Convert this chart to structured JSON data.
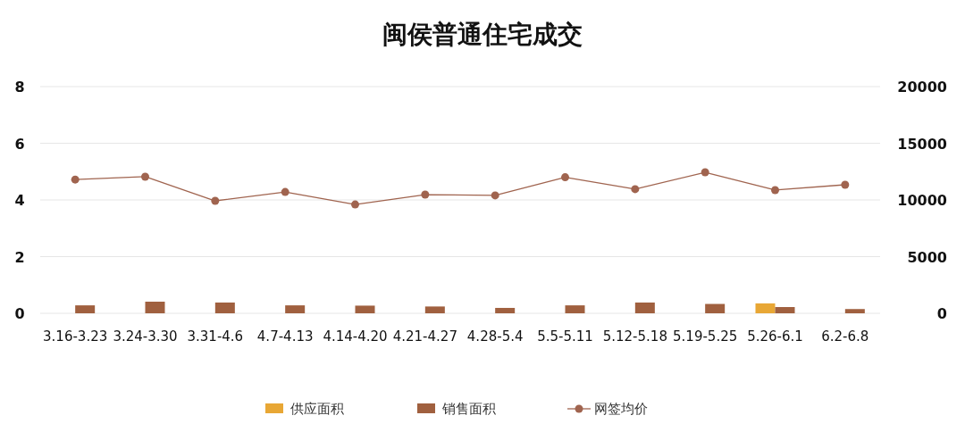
{
  "chart_data": {
    "type": "bar",
    "title": "闽侯普通住宅成交",
    "categories": [
      "3.16-3.23",
      "3.24-3.30",
      "3.31-4.6",
      "4.7-4.13",
      "4.14-4.20",
      "4.21-4.27",
      "4.28-5.4",
      "5.5-5.11",
      "5.12-5.18",
      "5.19-5.25",
      "5.26-6.1",
      "6.2-6.8"
    ],
    "series": [
      {
        "name": "供应面积",
        "color": "#e8a735",
        "values": [
          0,
          0,
          0,
          0,
          0,
          0,
          0,
          0,
          0,
          0,
          0.35,
          0
        ]
      },
      {
        "name": "销售面积",
        "color": "#a0603f",
        "values": [
          0.28,
          0.41,
          0.38,
          0.28,
          0.27,
          0.24,
          0.19,
          0.28,
          0.38,
          0.33,
          0.22,
          0.15
        ]
      },
      {
        "name": "网签均价",
        "type": "line",
        "axis": "y2",
        "color": "#a0644f",
        "marker": "circle",
        "values": [
          11800,
          12050,
          9920,
          10700,
          9600,
          10470,
          10400,
          12000,
          10950,
          12440,
          10870,
          11340
        ]
      }
    ],
    "ylim": [
      0,
      8
    ],
    "yticks": [
      0,
      2,
      4,
      6,
      8
    ],
    "y2lim": [
      0,
      20000
    ],
    "y2ticks": [
      0,
      5000,
      10000,
      15000,
      20000
    ],
    "grid": "y",
    "legend": "bottom"
  }
}
